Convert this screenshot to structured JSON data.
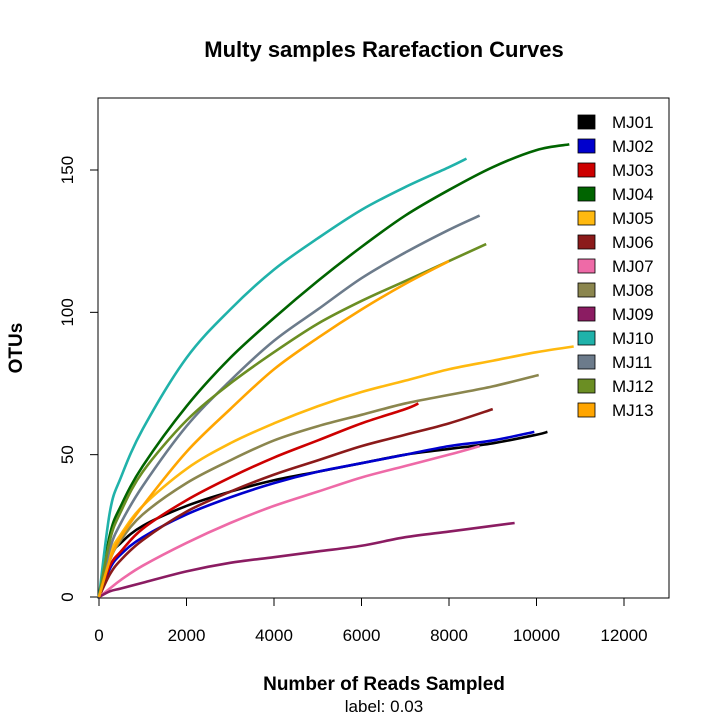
{
  "chart_data": {
    "type": "line",
    "title": "Multy samples Rarefaction Curves",
    "xlabel": "Number of Reads Sampled",
    "ylabel": "OTUs",
    "subtitle": "label: 0.03",
    "xlim": [
      0,
      13000
    ],
    "ylim": [
      0,
      175
    ],
    "xticks": [
      0,
      2000,
      4000,
      6000,
      8000,
      10000,
      12000
    ],
    "yticks": [
      0,
      50,
      100,
      150
    ],
    "grid": false,
    "legend_position": "top-right",
    "series": [
      {
        "name": "MJ01",
        "color": "#000000",
        "x": [
          0,
          250,
          500,
          1000,
          2000,
          3000,
          4000,
          5000,
          6000,
          7000,
          8000,
          9000,
          10000,
          10250
        ],
        "y": [
          0,
          14,
          19,
          25,
          32,
          37,
          41,
          44,
          47,
          50,
          52,
          54,
          57,
          58
        ]
      },
      {
        "name": "MJ02",
        "color": "#0000CD",
        "x": [
          0,
          250,
          500,
          1000,
          2000,
          3000,
          4000,
          5000,
          6000,
          7000,
          8000,
          9000,
          9950
        ],
        "y": [
          0,
          10,
          15,
          21,
          29,
          35,
          40,
          44,
          47,
          50,
          53,
          55,
          58
        ]
      },
      {
        "name": "MJ03",
        "color": "#CD0000",
        "x": [
          0,
          250,
          500,
          1000,
          2000,
          3000,
          4000,
          5000,
          6000,
          7000,
          7300
        ],
        "y": [
          0,
          11,
          16,
          24,
          34,
          42,
          49,
          55,
          61,
          66,
          68
        ]
      },
      {
        "name": "MJ04",
        "color": "#006400",
        "x": [
          0,
          250,
          500,
          1000,
          2000,
          3000,
          4000,
          5000,
          6000,
          7000,
          8000,
          9000,
          10000,
          10750
        ],
        "y": [
          0,
          22,
          32,
          46,
          67,
          84,
          98,
          111,
          123,
          134,
          143,
          151,
          157,
          159
        ]
      },
      {
        "name": "MJ05",
        "color": "#FFB90F",
        "x": [
          0,
          250,
          500,
          1000,
          2000,
          3000,
          4000,
          5000,
          6000,
          7000,
          8000,
          9000,
          10000,
          10850
        ],
        "y": [
          0,
          15,
          22,
          32,
          45,
          54,
          61,
          67,
          72,
          76,
          80,
          83,
          86,
          88
        ]
      },
      {
        "name": "MJ06",
        "color": "#8B1A1A",
        "x": [
          0,
          250,
          500,
          1000,
          2000,
          3000,
          4000,
          5000,
          6000,
          7000,
          8000,
          9000
        ],
        "y": [
          0,
          8,
          13,
          20,
          30,
          37,
          43,
          48,
          53,
          57,
          61,
          66
        ]
      },
      {
        "name": "MJ07",
        "color": "#EE6AA7",
        "x": [
          0,
          250,
          500,
          1000,
          2000,
          3000,
          4000,
          5000,
          6000,
          7000,
          8000,
          8700
        ],
        "y": [
          0,
          3,
          6,
          11,
          19,
          26,
          32,
          37,
          42,
          46,
          50,
          53
        ]
      },
      {
        "name": "MJ08",
        "color": "#8B864E",
        "x": [
          0,
          250,
          500,
          1000,
          2000,
          3000,
          4000,
          5000,
          6000,
          7000,
          8000,
          9000,
          10050
        ],
        "y": [
          0,
          13,
          20,
          29,
          40,
          48,
          55,
          60,
          64,
          68,
          71,
          74,
          78
        ]
      },
      {
        "name": "MJ09",
        "color": "#8B1C62",
        "x": [
          0,
          250,
          500,
          1000,
          2000,
          3000,
          4000,
          5000,
          6000,
          7000,
          8000,
          9000,
          9500
        ],
        "y": [
          0,
          2,
          3,
          5,
          9,
          12,
          14,
          16,
          18,
          21,
          23,
          25,
          26
        ]
      },
      {
        "name": "MJ10",
        "color": "#20B2AA",
        "x": [
          0,
          250,
          500,
          1000,
          2000,
          3000,
          4000,
          5000,
          6000,
          7000,
          8000,
          8400
        ],
        "y": [
          0,
          30,
          42,
          59,
          84,
          101,
          115,
          126,
          136,
          144,
          151,
          154
        ]
      },
      {
        "name": "MJ11",
        "color": "#6C7B8B",
        "x": [
          0,
          250,
          500,
          1000,
          2000,
          3000,
          4000,
          5000,
          6000,
          7000,
          8000,
          8700
        ],
        "y": [
          0,
          17,
          26,
          39,
          60,
          76,
          90,
          101,
          112,
          121,
          129,
          134
        ]
      },
      {
        "name": "MJ12",
        "color": "#6B8E23",
        "x": [
          0,
          250,
          500,
          1000,
          2000,
          3000,
          4000,
          5000,
          6000,
          7000,
          8000,
          8850
        ],
        "y": [
          0,
          20,
          30,
          44,
          62,
          75,
          86,
          96,
          104,
          111,
          118,
          124
        ]
      },
      {
        "name": "MJ13",
        "color": "#FFA500",
        "x": [
          0,
          250,
          500,
          1000,
          2000,
          3000,
          4000,
          5000,
          6000,
          7000,
          8000
        ],
        "y": [
          0,
          13,
          21,
          32,
          51,
          66,
          80,
          91,
          101,
          110,
          118
        ]
      }
    ]
  }
}
